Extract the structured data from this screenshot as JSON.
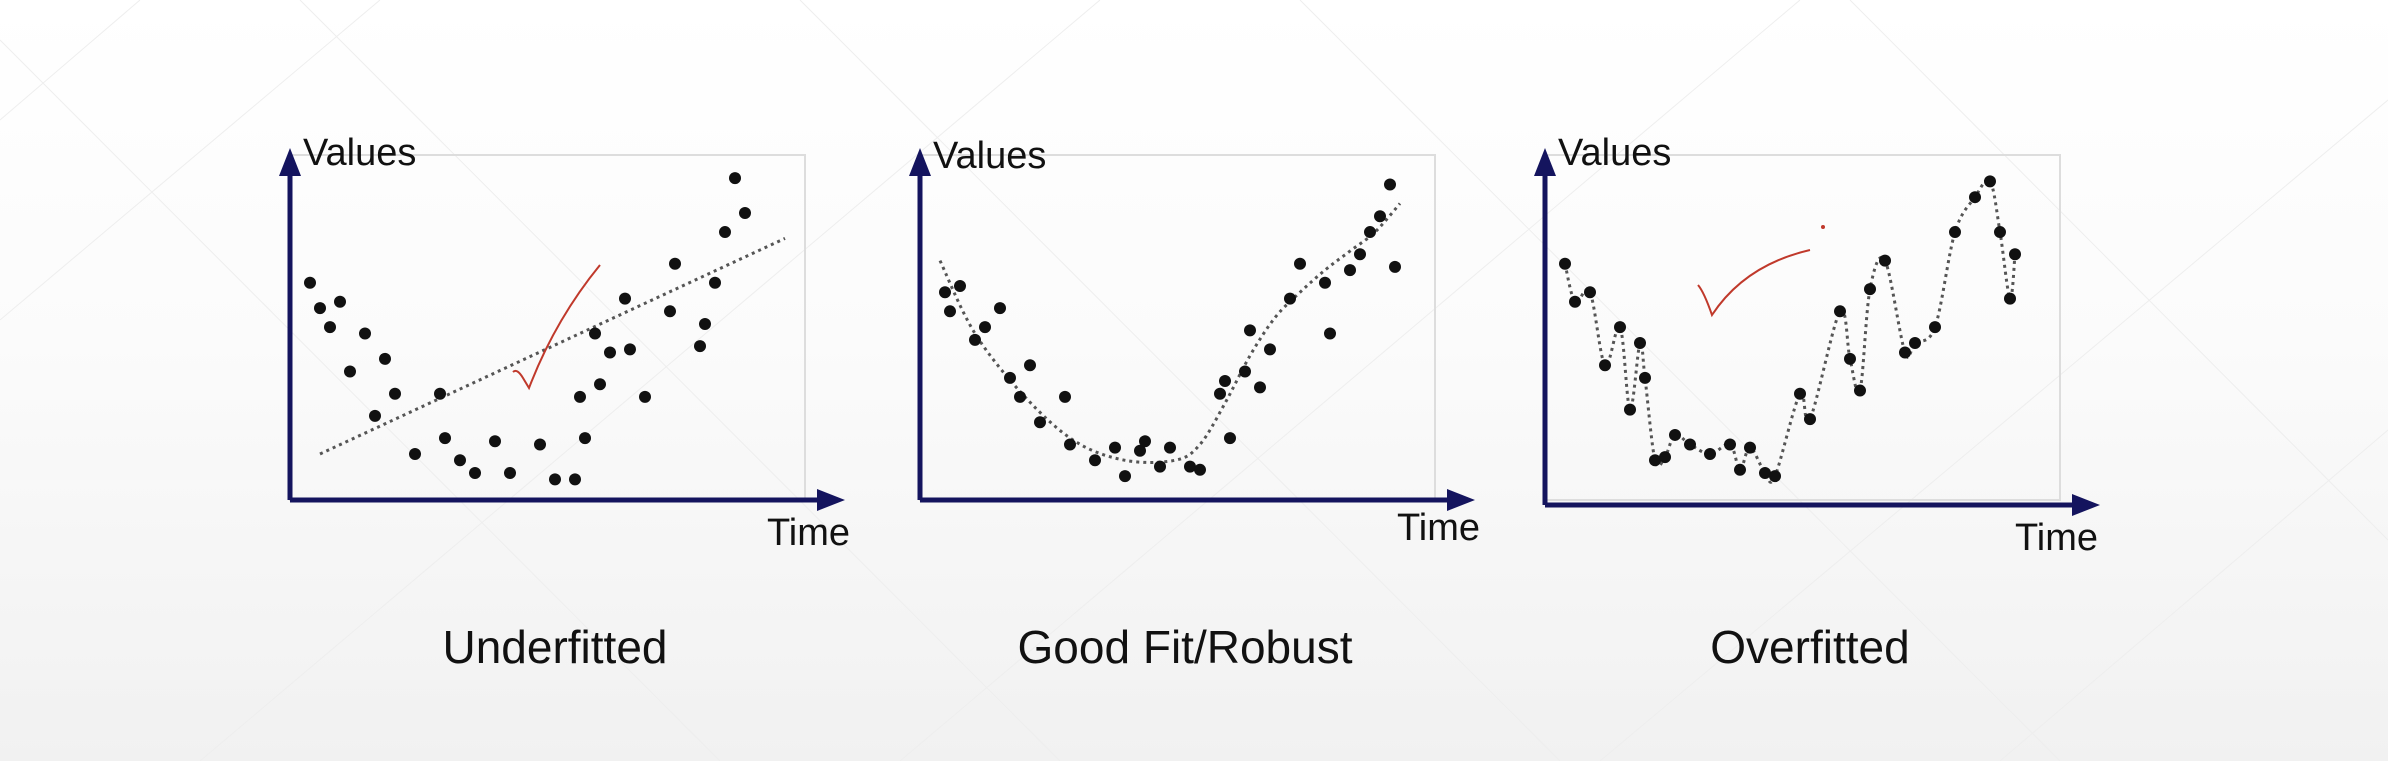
{
  "colors": {
    "axis": "#14145e",
    "points": "#111111",
    "fit_line": "#555555",
    "frame": "#dddddd",
    "check_mark": "#c0392b",
    "caption_text": "#111111"
  },
  "chart_data": [
    {
      "type": "scatter",
      "title": "Underfitted",
      "ylabel": "Values",
      "xlabel": "Time",
      "xlim": [
        0,
        100
      ],
      "ylim": [
        0,
        100
      ],
      "grid": false,
      "fit_line": "linear (dotted)",
      "points": {
        "x": [
          3,
          5,
          7,
          9,
          11,
          14,
          16,
          18,
          20,
          24,
          29,
          30,
          33,
          36,
          40,
          43,
          49,
          52,
          56,
          57,
          58,
          60,
          61,
          63,
          66,
          67,
          70,
          75,
          76,
          81,
          82,
          84,
          86,
          88,
          90
        ],
        "y": [
          66,
          58,
          52,
          60,
          38,
          50,
          24,
          42,
          31,
          12,
          31,
          17,
          10,
          6,
          16,
          6,
          15,
          4,
          4,
          30,
          17,
          50,
          34,
          44,
          61,
          45,
          30,
          57,
          72,
          46,
          53,
          66,
          82,
          99,
          88
        ]
      },
      "trend": {
        "x": [
          5,
          98
        ],
        "y": [
          12,
          80
        ]
      }
    },
    {
      "type": "scatter",
      "title": "Good Fit/Robust",
      "ylabel": "Values",
      "xlabel": "Time",
      "xlim": [
        0,
        100
      ],
      "ylim": [
        0,
        100
      ],
      "grid": false,
      "fit_line": "smooth curve (dotted)",
      "points": {
        "x": [
          4,
          5,
          7,
          10,
          12,
          15,
          17,
          19,
          21,
          23,
          28,
          29,
          34,
          38,
          40,
          43,
          44,
          47,
          49,
          53,
          55,
          59,
          60,
          61,
          64,
          65,
          67,
          69,
          73,
          75,
          80,
          81,
          85,
          87,
          89,
          91,
          93,
          94
        ],
        "y": [
          63,
          57,
          65,
          48,
          52,
          58,
          36,
          30,
          40,
          22,
          30,
          15,
          10,
          14,
          5,
          13,
          16,
          8,
          14,
          8,
          7,
          31,
          35,
          17,
          38,
          51,
          33,
          45,
          61,
          72,
          66,
          50,
          70,
          75,
          82,
          87,
          97,
          71
        ]
      },
      "curve": {
        "x": [
          3,
          10,
          20,
          30,
          40,
          50,
          55,
          60,
          65,
          70,
          75,
          80,
          85,
          90,
          95
        ],
        "y": [
          73,
          50,
          30,
          16,
          10,
          10,
          15,
          28,
          43,
          55,
          63,
          70,
          76,
          82,
          91
        ]
      }
    },
    {
      "type": "scatter",
      "title": "Overfitted",
      "ylabel": "Values",
      "xlabel": "Time",
      "xlim": [
        0,
        100
      ],
      "ylim": [
        0,
        100
      ],
      "grid": false,
      "fit_line": "wiggly curve through every point (dotted)",
      "points": {
        "x": [
          3,
          5,
          8,
          11,
          14,
          16,
          18,
          19,
          21,
          23,
          25,
          28,
          32,
          36,
          38,
          40,
          43,
          45,
          50,
          52,
          58,
          60,
          62,
          64,
          67,
          71,
          73,
          77,
          81,
          85,
          88,
          90,
          92,
          93
        ],
        "y": [
          72,
          60,
          63,
          40,
          52,
          26,
          47,
          36,
          10,
          11,
          18,
          15,
          12,
          15,
          7,
          14,
          6,
          5,
          31,
          23,
          57,
          42,
          32,
          64,
          73,
          44,
          47,
          52,
          82,
          93,
          98,
          82,
          61,
          75
        ]
      },
      "curve": {
        "x": [
          3,
          5,
          8,
          11,
          14,
          16,
          18,
          19,
          21,
          23,
          25,
          28,
          32,
          36,
          38,
          40,
          43,
          45,
          50,
          52,
          58,
          60,
          62,
          64,
          67,
          71,
          73,
          77,
          81,
          85,
          88,
          90,
          92,
          93
        ],
        "y": [
          72,
          60,
          63,
          40,
          52,
          26,
          47,
          36,
          10,
          11,
          18,
          15,
          12,
          15,
          7,
          14,
          6,
          5,
          31,
          23,
          57,
          42,
          32,
          64,
          73,
          44,
          47,
          52,
          82,
          93,
          98,
          82,
          61,
          75
        ]
      }
    }
  ]
}
